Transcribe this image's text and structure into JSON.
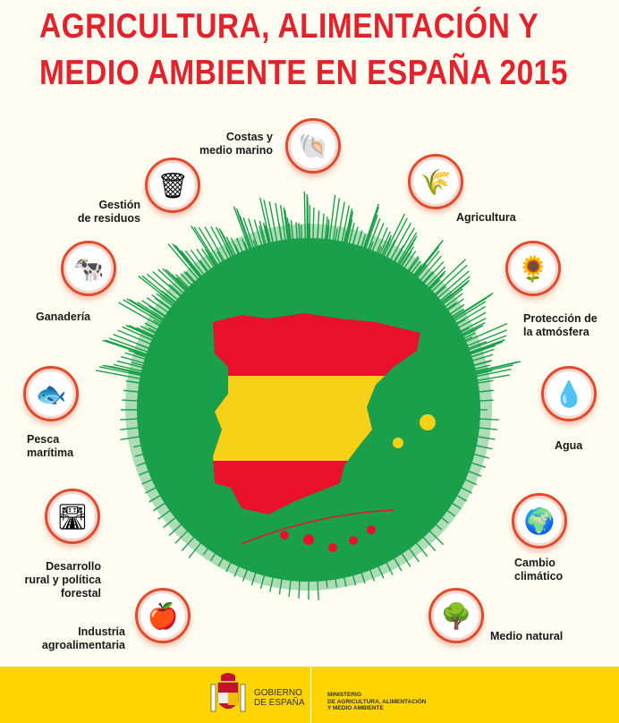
{
  "title": {
    "line1": "AGRICULTURA, ALIMENTACIÓN Y",
    "line2": "MEDIO AMBIENTE EN ESPAÑA 2015"
  },
  "colors": {
    "title": "#e2232e",
    "globe": "#1aa04a",
    "flag_red": "#e8102a",
    "flag_yellow": "#f7d117",
    "footer": "#ffd400"
  },
  "topics": [
    {
      "label": "Costas y\nmedio marino",
      "icon": "seashell-icon"
    },
    {
      "label": "Gestión\nde residuos",
      "icon": "waste-bin-icon"
    },
    {
      "label": "Agricultura",
      "icon": "wheat-icon"
    },
    {
      "label": "Ganadería",
      "icon": "cow-icon"
    },
    {
      "label": "Protección de\nla atmósfera",
      "icon": "sunflower-icon"
    },
    {
      "label": "Pesca\nmarítima",
      "icon": "fish-icon"
    },
    {
      "label": "Agua",
      "icon": "water-splash-icon"
    },
    {
      "label": "Desarrollo\nrural y política\nforestal",
      "icon": "rural-road-icon"
    },
    {
      "label": "Cambio\nclimático",
      "icon": "earth-hands-icon"
    },
    {
      "label": "Industria\nagroalimentaria",
      "icon": "apple-icon"
    },
    {
      "label": "Medio natural",
      "icon": "tree-icon"
    }
  ],
  "footer": {
    "gobierno": "GOBIERNO\nDE ESPAÑA",
    "ministerio": "MINISTERIO\nDE AGRICULTURA, ALIMENTACIÓN\nY MEDIO AMBIENTE"
  }
}
